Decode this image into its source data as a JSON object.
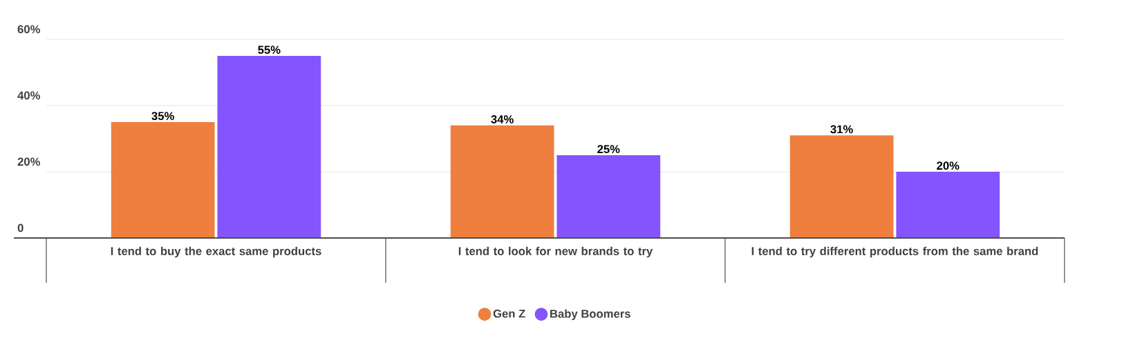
{
  "chart_data": {
    "type": "bar",
    "categories": [
      "I tend to buy the exact same products",
      "I tend to look for new brands to try",
      "I tend to try different products from the same brand"
    ],
    "series": [
      {
        "name": "Gen Z",
        "color": "#ee7f3f",
        "values": [
          35,
          34,
          31
        ],
        "value_labels": [
          "35%",
          "34%",
          "31%"
        ]
      },
      {
        "name": "Baby Boomers",
        "color": "#8455fe",
        "values": [
          55,
          25,
          20
        ],
        "value_labels": [
          "55%",
          "25%",
          "20%"
        ]
      }
    ],
    "ylim": [
      0,
      60
    ],
    "yticks": [
      {
        "value": 0,
        "label": "0"
      },
      {
        "value": 20,
        "label": "20%"
      },
      {
        "value": 40,
        "label": "40%"
      },
      {
        "value": 60,
        "label": "60%"
      }
    ],
    "grid": "y",
    "legend": "bottom"
  }
}
